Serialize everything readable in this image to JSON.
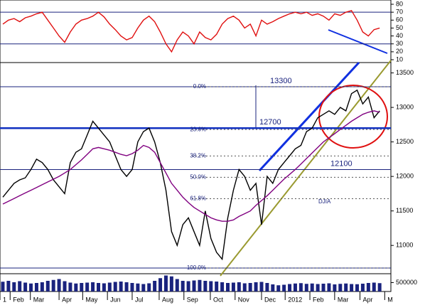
{
  "chart_data": [
    {
      "type": "line",
      "name": "rsi",
      "x": [
        0.5,
        1.5,
        2.5,
        3.5,
        4.5,
        5.5,
        6.5,
        7.5,
        8.5,
        9.5,
        10.5,
        11.5,
        12.5,
        13.5,
        14.5,
        15.5,
        16.5,
        17.5,
        18.5,
        19.5,
        20.5,
        21.5,
        22.5,
        23.5,
        24.5,
        25.5,
        26.5,
        27.5,
        28.5,
        29.5,
        30.5,
        31.5,
        32.5,
        33.5,
        34.5,
        35.5,
        36.5,
        37.5,
        38.5,
        39.5,
        40.5,
        41.5,
        42.5,
        43.5,
        44.5,
        45.5,
        46.5,
        47.5,
        48.5,
        49.5,
        50.5,
        51.5,
        52.5,
        53.5,
        54.5,
        55.5,
        56.5,
        57.5,
        58.5,
        59.5,
        60.5,
        61.5,
        62.5,
        63.5,
        64.5,
        65.5,
        66.5,
        67.5
      ],
      "series": [
        {
          "color": "#e01010",
          "values": [
            55,
            60,
            62,
            58,
            63,
            65,
            68,
            70,
            60,
            50,
            40,
            32,
            45,
            55,
            60,
            62,
            65,
            70,
            64,
            55,
            48,
            40,
            35,
            38,
            50,
            60,
            65,
            58,
            45,
            30,
            20,
            35,
            45,
            40,
            30,
            45,
            38,
            35,
            42,
            55,
            62,
            65,
            60,
            50,
            55,
            40,
            60,
            55,
            58,
            62,
            65,
            68,
            70,
            68,
            70,
            66,
            68,
            65,
            60,
            68,
            66,
            70,
            72,
            60,
            45,
            40,
            48,
            50
          ]
        }
      ],
      "xlim": [
        0,
        69.5
      ],
      "ylim": [
        6.4,
        85.4
      ],
      "yticks": [
        10,
        20,
        30,
        40,
        50,
        60,
        70,
        80
      ],
      "hlines": [
        {
          "value": 70
        },
        {
          "value": 30
        }
      ]
    },
    {
      "type": "line",
      "name": "price",
      "label": "DJIA",
      "x": [
        0.5,
        1.5,
        2.5,
        3.5,
        4.5,
        5.5,
        6.5,
        7.5,
        8.5,
        9.5,
        10.5,
        11.5,
        12.5,
        13.5,
        14.5,
        15.5,
        16.5,
        17.5,
        18.5,
        19.5,
        20.5,
        21.5,
        22.5,
        23.5,
        24.5,
        25.5,
        26.5,
        27.5,
        28.5,
        29.5,
        30.5,
        31.5,
        32.5,
        33.5,
        34.5,
        35.5,
        36.5,
        37.5,
        38.5,
        39.5,
        40.5,
        41.5,
        42.5,
        43.5,
        44.5,
        45.5,
        46.5,
        47.5,
        48.5,
        49.5,
        50.5,
        51.5,
        52.5,
        53.5,
        54.5,
        55.5,
        56.5,
        57.5,
        58.5,
        59.5,
        60.5,
        61.5,
        62.5,
        63.5,
        64.5,
        65.5,
        66.5,
        67.5
      ],
      "series": [
        {
          "color": "#000000",
          "values": [
            11700,
            11800,
            11900,
            11950,
            11980,
            12100,
            12250,
            12200,
            12100,
            11950,
            11850,
            11750,
            12200,
            12350,
            12400,
            12600,
            12800,
            12700,
            12600,
            12500,
            12300,
            12100,
            12000,
            12100,
            12500,
            12650,
            12700,
            12500,
            12200,
            11800,
            11200,
            11000,
            11300,
            11400,
            11200,
            11000,
            11500,
            11100,
            10900,
            10800,
            11400,
            11800,
            12100,
            12000,
            11800,
            11900,
            11300,
            12000,
            11900,
            12100,
            12200,
            12300,
            12400,
            12450,
            12650,
            12700,
            12850,
            12900,
            12950,
            12900,
            13000,
            12950,
            13200,
            13250,
            13050,
            13150,
            12850,
            12950
          ]
        },
        {
          "color": "#800080",
          "values": [
            11600,
            11640,
            11680,
            11720,
            11760,
            11800,
            11840,
            11880,
            11920,
            11960,
            12000,
            12050,
            12100,
            12170,
            12240,
            12320,
            12400,
            12420,
            12400,
            12380,
            12350,
            12320,
            12300,
            12330,
            12380,
            12450,
            12420,
            12350,
            12200,
            12050,
            11900,
            11800,
            11700,
            11620,
            11550,
            11500,
            11450,
            11400,
            11370,
            11350,
            11350,
            11370,
            11420,
            11460,
            11500,
            11580,
            11650,
            11720,
            11800,
            11880,
            11960,
            12030,
            12100,
            12180,
            12260,
            12340,
            12420,
            12500,
            12560,
            12620,
            12680,
            12740,
            12800,
            12850,
            12900,
            12930,
            12950,
            12930
          ]
        }
      ],
      "xlim": [
        0,
        69.5
      ],
      "ylim": [
        10590,
        13650
      ],
      "yticks": [
        11000,
        11500,
        12000,
        12500,
        13000,
        13500
      ],
      "hlines": [
        {
          "value": 13300,
          "label": "13300",
          "color": "#1a237e"
        },
        {
          "value": 12700,
          "label": "12700",
          "color": "#1030c0"
        },
        {
          "value": 12100,
          "label": "12100",
          "color": "#1a237e"
        },
        {
          "value": 10673,
          "color": "#1a237e"
        }
      ],
      "fib_levels": [
        {
          "value": 13300,
          "label": "0.0%"
        },
        {
          "value": 12680,
          "label": "23.6%"
        },
        {
          "value": 12297,
          "label": "38.2%"
        },
        {
          "value": 11987,
          "label": "50.0%"
        },
        {
          "value": 11677,
          "label": "61.8%"
        },
        {
          "value": 10673,
          "label": "100.0%"
        }
      ]
    },
    {
      "type": "bar",
      "name": "volume",
      "x": [
        0.5,
        1.5,
        2.5,
        3.5,
        4.5,
        5.5,
        6.5,
        7.5,
        8.5,
        9.5,
        10.5,
        11.5,
        12.5,
        13.5,
        14.5,
        15.5,
        16.5,
        17.5,
        18.5,
        19.5,
        20.5,
        21.5,
        22.5,
        23.5,
        24.5,
        25.5,
        26.5,
        27.5,
        28.5,
        29.5,
        30.5,
        31.5,
        32.5,
        33.5,
        34.5,
        35.5,
        36.5,
        37.5,
        38.5,
        39.5,
        40.5,
        41.5,
        42.5,
        43.5,
        44.5,
        45.5,
        46.5,
        47.5,
        48.5,
        49.5,
        50.5,
        51.5,
        52.5,
        53.5,
        54.5,
        55.5,
        56.5,
        57.5,
        58.5,
        59.5,
        60.5,
        61.5,
        62.5,
        63.5,
        64.5,
        65.5,
        66.5,
        67.5
      ],
      "values": [
        550000,
        600000,
        520000,
        580000,
        500000,
        450000,
        480000,
        520000,
        600000,
        650000,
        700000,
        580000,
        500000,
        450000,
        480000,
        500000,
        520000,
        480000,
        460000,
        500000,
        540000,
        560000,
        520000,
        480000,
        450000,
        420000,
        460000,
        600000,
        750000,
        900000,
        850000,
        700000,
        600000,
        580000,
        620000,
        650000,
        600000,
        580000,
        560000,
        520000,
        480000,
        500000,
        520000,
        460000,
        480000,
        520000,
        540000,
        480000,
        400000,
        350000,
        380000,
        420000,
        450000,
        470000,
        430000,
        450000,
        420000,
        440000,
        460000,
        400000,
        430000,
        450000,
        420000,
        410000,
        440000,
        480000,
        500000,
        470000
      ],
      "color": "#1a237e",
      "xlim": [
        0,
        69.5
      ],
      "ylim": [
        0,
        1000000
      ],
      "yticks": [
        500000
      ],
      "xticks": [
        {
          "value": 0,
          "label": "1"
        },
        {
          "value": 1.8,
          "label": "Feb"
        },
        {
          "value": 5.4,
          "label": "Mar"
        },
        {
          "value": 10.5,
          "label": "Apr"
        },
        {
          "value": 14.7,
          "label": "May"
        },
        {
          "value": 19.1,
          "label": "Jun"
        },
        {
          "value": 23.5,
          "label": "Jul"
        },
        {
          "value": 28.3,
          "label": "Aug"
        },
        {
          "value": 32.7,
          "label": "Sep"
        },
        {
          "value": 37.4,
          "label": "Oct"
        },
        {
          "value": 41.8,
          "label": "Nov"
        },
        {
          "value": 46.5,
          "label": "Dec"
        },
        {
          "value": 50.7,
          "label": "2012"
        },
        {
          "value": 55.1,
          "label": "Feb"
        },
        {
          "value": 59.5,
          "label": "Mar"
        },
        {
          "value": 64,
          "label": "Apr"
        },
        {
          "value": 68.4,
          "label": "M"
        }
      ]
    }
  ]
}
